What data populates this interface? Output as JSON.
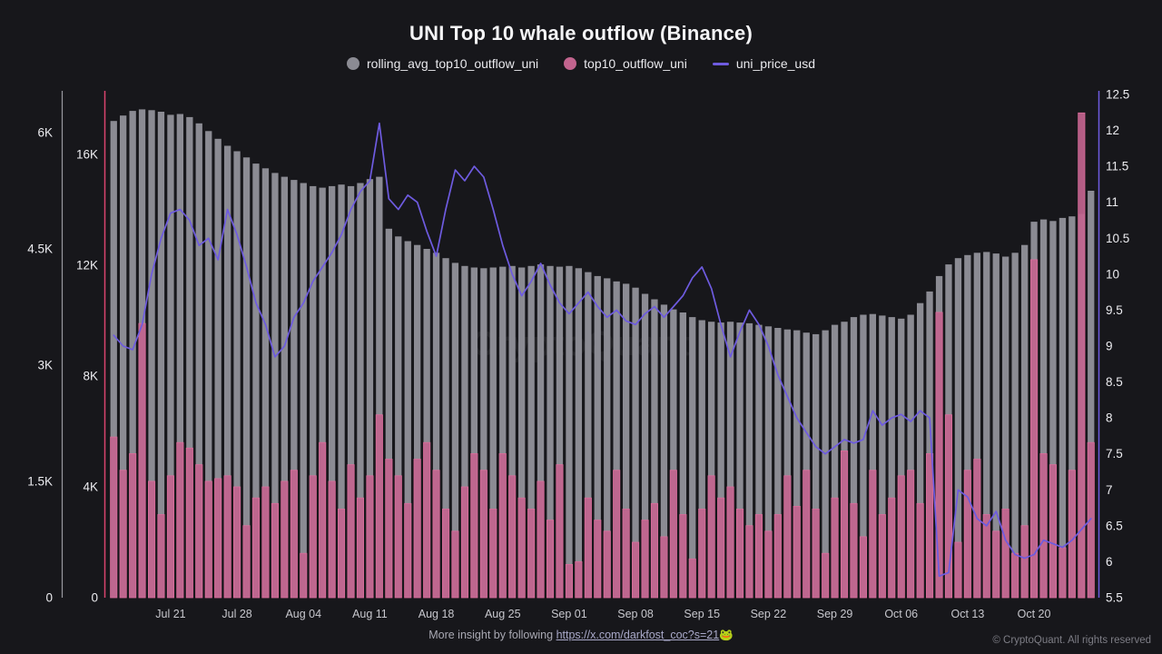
{
  "title": "UNI Top 10 whale outflow (Binance)",
  "watermark": "CryptoQuant",
  "legend": [
    {
      "label": "rolling_avg_top10_outflow_uni",
      "color": "#8b8b93",
      "marker": "circle"
    },
    {
      "label": "top10_outflow_uni",
      "color": "#c2648e",
      "marker": "circle"
    },
    {
      "label": "uni_price_usd",
      "color": "#6e5be0",
      "marker": "line"
    }
  ],
  "footer": {
    "prefix": "More insight by following ",
    "link": "https://x.com/darkfost_coc?s=21",
    "emoji": "🐸",
    "copyright": "© CryptoQuant. All rights reserved"
  },
  "colors": {
    "background": "#17171b",
    "bar_gray": "#8b8b93",
    "bar_pink": "#c2648e",
    "bar_pink_stroke": "#da6d9b",
    "price_line": "#6e5be0",
    "inner_axis_line": "#d9446e",
    "outer_axis_line": "#9a9aa1",
    "axis_text": "#ececf0",
    "x_text": "#c7c7cd"
  },
  "chart_data": {
    "type": "bar+line",
    "title": "UNI Top 10 whale outflow (Binance)",
    "x_tick_labels": [
      "Jul 21",
      "Jul 28",
      "Aug 04",
      "Aug 11",
      "Aug 18",
      "Aug 25",
      "Sep 01",
      "Sep 08",
      "Sep 15",
      "Sep 22",
      "Sep 29",
      "Oct 06",
      "Oct 13",
      "Oct 20"
    ],
    "x_ticks": [
      {
        "label": "Jul 21",
        "index": 6
      },
      {
        "label": "Jul 28",
        "index": 13
      },
      {
        "label": "Aug 04",
        "index": 20
      },
      {
        "label": "Aug 11",
        "index": 27
      },
      {
        "label": "Aug 18",
        "index": 34
      },
      {
        "label": "Aug 25",
        "index": 41
      },
      {
        "label": "Sep 01",
        "index": 48
      },
      {
        "label": "Sep 08",
        "index": 55
      },
      {
        "label": "Sep 15",
        "index": 62
      },
      {
        "label": "Sep 22",
        "index": 69
      },
      {
        "label": "Sep 29",
        "index": 76
      },
      {
        "label": "Oct 06",
        "index": 83
      },
      {
        "label": "Oct 13",
        "index": 90
      },
      {
        "label": "Oct 20",
        "index": 97
      }
    ],
    "axes": {
      "left_outer": {
        "series": "rolling_avg_top10_outflow_uni",
        "line_color": "#9a9aa1",
        "ticks": [
          {
            "label": "0",
            "value": 0
          },
          {
            "label": "1.5K",
            "value": 1500
          },
          {
            "label": "3K",
            "value": 3000
          },
          {
            "label": "4.5K",
            "value": 4500
          },
          {
            "label": "6K",
            "value": 6000
          }
        ]
      },
      "left_inner": {
        "series": "top10_outflow_uni",
        "line_color": "#d9446e",
        "ticks": [
          {
            "label": "0",
            "value": 0
          },
          {
            "label": "4K",
            "value": 4000
          },
          {
            "label": "8K",
            "value": 8000
          },
          {
            "label": "12K",
            "value": 12000
          },
          {
            "label": "16K",
            "value": 16000
          }
        ]
      },
      "right": {
        "series": "uni_price_usd",
        "line_color": "#6e5be0",
        "ticks": [
          {
            "label": "12.5",
            "value": 12.5
          },
          {
            "label": "12",
            "value": 12
          },
          {
            "label": "11.5",
            "value": 11.5
          },
          {
            "label": "11",
            "value": 11
          },
          {
            "label": "10.5",
            "value": 10.5
          },
          {
            "label": "10",
            "value": 10
          },
          {
            "label": "9.5",
            "value": 9.5
          },
          {
            "label": "9",
            "value": 9
          },
          {
            "label": "8.5",
            "value": 8.5
          },
          {
            "label": "8",
            "value": 8
          },
          {
            "label": "7.5",
            "value": 7.5
          },
          {
            "label": "7",
            "value": 7
          },
          {
            "label": "6.5",
            "value": 6.5
          },
          {
            "label": "6",
            "value": 6
          },
          {
            "label": "5.5",
            "value": 5.5
          }
        ]
      }
    },
    "series": [
      {
        "name": "rolling_avg_top10_outflow_uni",
        "type": "bar",
        "axis": "left_outer",
        "color": "#8b8b93",
        "values": [
          6150,
          6220,
          6280,
          6300,
          6290,
          6270,
          6230,
          6240,
          6200,
          6120,
          6020,
          5920,
          5830,
          5760,
          5680,
          5600,
          5540,
          5480,
          5430,
          5390,
          5350,
          5310,
          5290,
          5310,
          5330,
          5310,
          5350,
          5400,
          5430,
          4760,
          4660,
          4600,
          4550,
          4500,
          4450,
          4380,
          4320,
          4280,
          4260,
          4250,
          4260,
          4270,
          4280,
          4260,
          4280,
          4300,
          4280,
          4270,
          4280,
          4250,
          4200,
          4150,
          4120,
          4080,
          4050,
          4000,
          3920,
          3850,
          3780,
          3720,
          3680,
          3620,
          3580,
          3560,
          3550,
          3560,
          3550,
          3540,
          3520,
          3500,
          3480,
          3460,
          3450,
          3420,
          3400,
          3450,
          3520,
          3560,
          3620,
          3650,
          3660,
          3640,
          3620,
          3600,
          3650,
          3800,
          3950,
          4150,
          4300,
          4380,
          4420,
          4450,
          4460,
          4440,
          4400,
          4450,
          4550,
          4850,
          4880,
          4860,
          4900,
          4920,
          4950,
          5250
        ]
      },
      {
        "name": "top10_outflow_uni",
        "type": "bar",
        "axis": "left_inner",
        "color": "#c2648e",
        "stroke": "#da6d9b",
        "values": [
          5800,
          4600,
          5200,
          9900,
          4200,
          3000,
          4400,
          5600,
          5400,
          4800,
          4200,
          4300,
          4400,
          4000,
          2600,
          3600,
          4000,
          3400,
          4200,
          4600,
          1600,
          4400,
          5600,
          4200,
          3200,
          4800,
          3600,
          4400,
          6600,
          5000,
          4400,
          3400,
          5000,
          5600,
          4600,
          3200,
          2400,
          4000,
          5200,
          4600,
          3200,
          5200,
          4400,
          3600,
          3200,
          4200,
          2800,
          4800,
          1200,
          1300,
          3600,
          2800,
          2400,
          4600,
          3200,
          2000,
          2800,
          3400,
          2200,
          4600,
          3000,
          1400,
          3200,
          4400,
          3600,
          4000,
          3200,
          2600,
          3000,
          2400,
          3000,
          4400,
          3300,
          4600,
          3200,
          1600,
          3600,
          5300,
          3400,
          2200,
          4600,
          3000,
          3600,
          4400,
          4600,
          3400,
          5200,
          10300,
          6600,
          2000,
          4600,
          5000,
          3000,
          2400,
          3200,
          1600,
          2600,
          12200,
          5200,
          4800,
          1800,
          4600,
          17500,
          5600
        ]
      },
      {
        "name": "uni_price_usd",
        "type": "line",
        "axis": "right",
        "color": "#6e5be0",
        "values": [
          9.15,
          9.0,
          8.95,
          9.3,
          10.0,
          10.5,
          10.85,
          10.9,
          10.75,
          10.4,
          10.5,
          10.2,
          10.9,
          10.55,
          10.1,
          9.6,
          9.3,
          8.85,
          9.0,
          9.4,
          9.6,
          9.9,
          10.1,
          10.3,
          10.55,
          10.9,
          11.15,
          11.3,
          12.1,
          11.05,
          10.9,
          11.1,
          11.0,
          10.6,
          10.25,
          10.9,
          11.45,
          11.3,
          11.5,
          11.35,
          10.9,
          10.4,
          10.0,
          9.7,
          9.9,
          10.15,
          9.85,
          9.6,
          9.45,
          9.6,
          9.75,
          9.55,
          9.4,
          9.5,
          9.35,
          9.3,
          9.45,
          9.55,
          9.4,
          9.55,
          9.7,
          9.95,
          10.1,
          9.8,
          9.3,
          8.85,
          9.2,
          9.5,
          9.3,
          9.0,
          8.6,
          8.3,
          8.0,
          7.8,
          7.6,
          7.5,
          7.6,
          7.7,
          7.65,
          7.7,
          8.1,
          7.9,
          8.0,
          8.05,
          7.95,
          8.1,
          8.0,
          5.8,
          5.85,
          7.0,
          6.9,
          6.6,
          6.5,
          6.7,
          6.3,
          6.1,
          6.05,
          6.1,
          6.3,
          6.25,
          6.2,
          6.3,
          6.45,
          6.6
        ]
      }
    ]
  }
}
